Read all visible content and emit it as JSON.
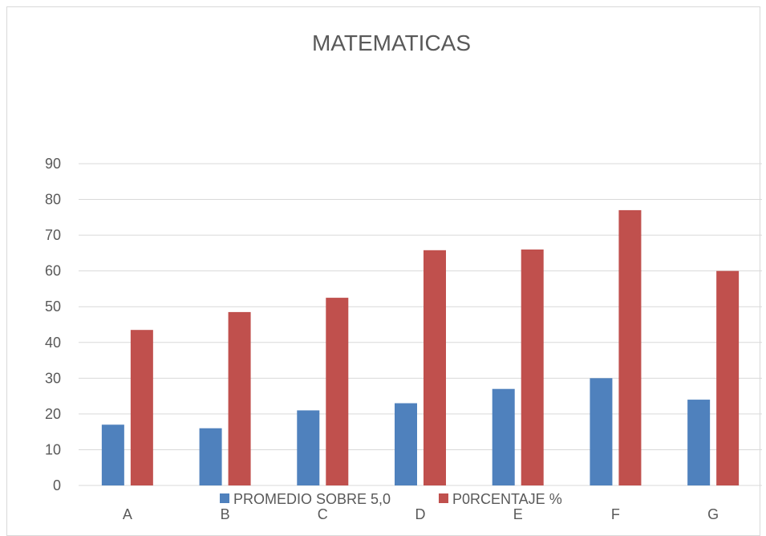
{
  "chart_data": {
    "type": "bar",
    "title": "MATEMATICAS",
    "xlabel": "",
    "ylabel": "",
    "categories": [
      "A",
      "B",
      "C",
      "D",
      "E",
      "F",
      "G"
    ],
    "series": [
      {
        "name": "PROMEDIO SOBRE 5,0",
        "values": [
          17,
          16,
          21,
          23,
          27,
          30,
          24
        ],
        "color": "#4f81bd"
      },
      {
        "name": "P0RCENTAJE %",
        "values": [
          43.5,
          48.5,
          52.5,
          65.8,
          66,
          77,
          60
        ],
        "color": "#c0504d"
      }
    ],
    "ylim": [
      0,
      90
    ],
    "yticks": [
      0,
      10,
      20,
      30,
      40,
      50,
      60,
      70,
      80,
      90
    ],
    "grid": true,
    "legend_position": "bottom"
  }
}
